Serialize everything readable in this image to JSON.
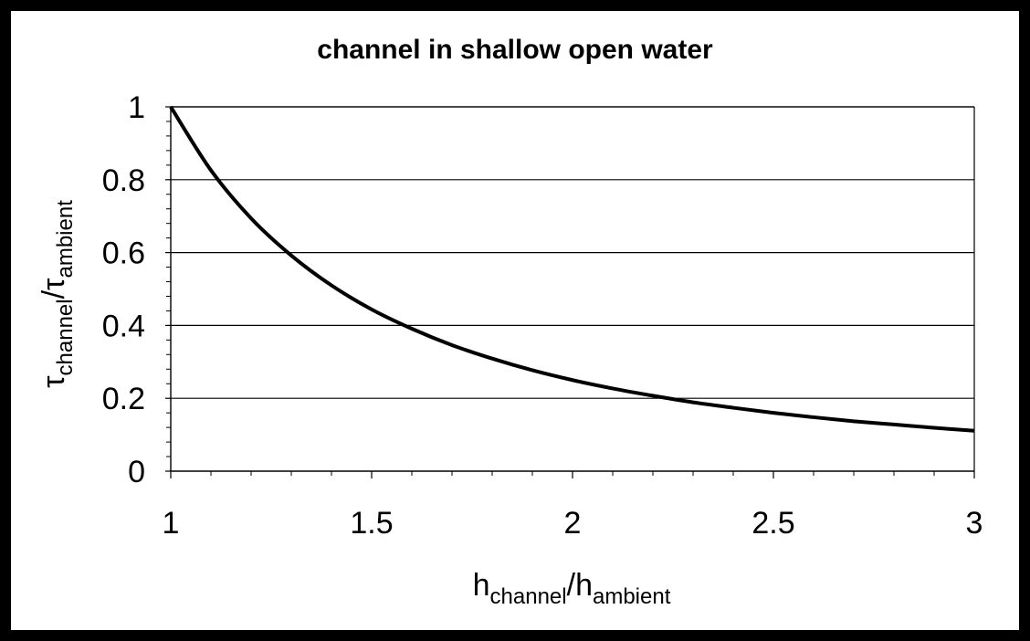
{
  "chart_data": {
    "type": "line",
    "title": "channel in shallow open water",
    "xlabel": {
      "symbol": "h",
      "sub1": "channel",
      "sep": "/",
      "symbol2": "h",
      "sub2": "ambient"
    },
    "ylabel": {
      "symbol": "τ",
      "sub1": "channel",
      "sep": "/",
      "symbol2": "τ",
      "sub2": "ambient"
    },
    "xlim": [
      1,
      3
    ],
    "ylim": [
      0,
      1
    ],
    "xticks": [
      "1",
      "1.5",
      "2",
      "2.5",
      "3"
    ],
    "yticks": [
      "0",
      "0.2",
      "0.4",
      "0.6",
      "0.8",
      "1"
    ],
    "grid": "horizontal",
    "legend": "none",
    "series": [
      {
        "color": "#000000",
        "x": [
          1.0,
          1.1,
          1.2,
          1.3,
          1.4,
          1.5,
          1.6,
          1.7,
          1.8,
          1.9,
          2.0,
          2.1,
          2.2,
          2.3,
          2.4,
          2.5,
          2.6,
          2.7,
          2.8,
          2.9,
          3.0
        ],
        "y": [
          1.0,
          0.826,
          0.694,
          0.592,
          0.51,
          0.444,
          0.391,
          0.346,
          0.309,
          0.277,
          0.25,
          0.227,
          0.207,
          0.189,
          0.174,
          0.16,
          0.148,
          0.137,
          0.128,
          0.119,
          0.111
        ]
      }
    ]
  }
}
